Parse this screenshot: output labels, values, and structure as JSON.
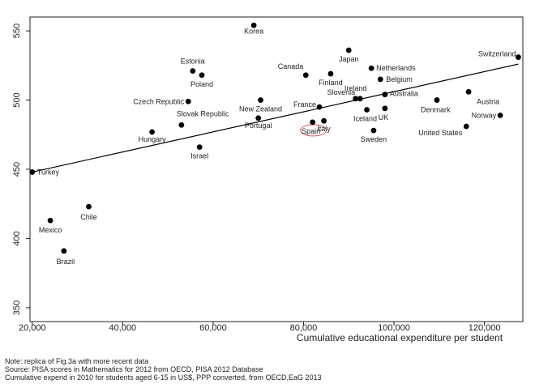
{
  "chart_data": {
    "type": "scatter",
    "xlabel": "Cumulative educational expenditure per student",
    "ylabel": "",
    "xlim": [
      19500,
      128500
    ],
    "ylim": [
      340,
      560
    ],
    "xticks": [
      20000,
      40000,
      60000,
      80000,
      100000,
      120000
    ],
    "xtick_labels": [
      "20,000",
      "40,000",
      "60,000",
      "80,000",
      "100,000",
      "120,000"
    ],
    "yticks": [
      350,
      400,
      450,
      500,
      550
    ],
    "ytick_labels": [
      "350",
      "400",
      "450",
      "500",
      "550"
    ],
    "grid": false,
    "points": [
      {
        "label": "Korea",
        "x": 69000,
        "y": 554
      },
      {
        "label": "Switzerland",
        "x": 127500,
        "y": 531
      },
      {
        "label": "Japan",
        "x": 90000,
        "y": 536
      },
      {
        "label": "Netherlands",
        "x": 95000,
        "y": 523
      },
      {
        "label": "Estonia",
        "x": 55500,
        "y": 521
      },
      {
        "label": "Poland",
        "x": 57500,
        "y": 518
      },
      {
        "label": "Canada",
        "x": 80500,
        "y": 518
      },
      {
        "label": "Finland",
        "x": 86000,
        "y": 519
      },
      {
        "label": "Belgium",
        "x": 97000,
        "y": 515
      },
      {
        "label": "Australia",
        "x": 98000,
        "y": 504
      },
      {
        "label": "Ireland",
        "x": 91500,
        "y": 501
      },
      {
        "label": "Slovenia",
        "x": 92500,
        "y": 501
      },
      {
        "label": "France",
        "x": 83500,
        "y": 495
      },
      {
        "label": "Czech Republic",
        "x": 54500,
        "y": 499
      },
      {
        "label": "New Zealand",
        "x": 70500,
        "y": 500
      },
      {
        "label": "Austria",
        "x": 116500,
        "y": 506
      },
      {
        "label": "Denmark",
        "x": 109500,
        "y": 500
      },
      {
        "label": "Norway",
        "x": 123500,
        "y": 489
      },
      {
        "label": "Iceland",
        "x": 94000,
        "y": 493
      },
      {
        "label": "UK",
        "x": 98000,
        "y": 494
      },
      {
        "label": "Portugal",
        "x": 70000,
        "y": 487
      },
      {
        "label": "Slovak Republic",
        "x": 53000,
        "y": 482
      },
      {
        "label": "Spain",
        "x": 82000,
        "y": 484
      },
      {
        "label": "Italy",
        "x": 84500,
        "y": 485
      },
      {
        "label": "Hungary",
        "x": 46500,
        "y": 477
      },
      {
        "label": "Sweden",
        "x": 95500,
        "y": 478
      },
      {
        "label": "United States",
        "x": 116000,
        "y": 481
      },
      {
        "label": "Israel",
        "x": 57000,
        "y": 466
      },
      {
        "label": "Turkey",
        "x": 20000,
        "y": 448
      },
      {
        "label": "Chile",
        "x": 32500,
        "y": 423
      },
      {
        "label": "Mexico",
        "x": 24000,
        "y": 413
      },
      {
        "label": "Brazil",
        "x": 27000,
        "y": 391
      }
    ],
    "trend_line": {
      "x": [
        20000,
        127500
      ],
      "y": [
        448,
        526
      ]
    },
    "highlight": {
      "label": "Spain",
      "shape": "ellipse",
      "color": "#d9534f"
    }
  },
  "notes": [
    "Note: replica of Fig.3a with more recent data",
    "Source: PISA scores in Mathematics for 2012 from OECD, PISA 2012 Database",
    "Cumulative expend in 2010 for students aged 6-15 in US$, PPP converted, from OECD,EaG 2013"
  ]
}
